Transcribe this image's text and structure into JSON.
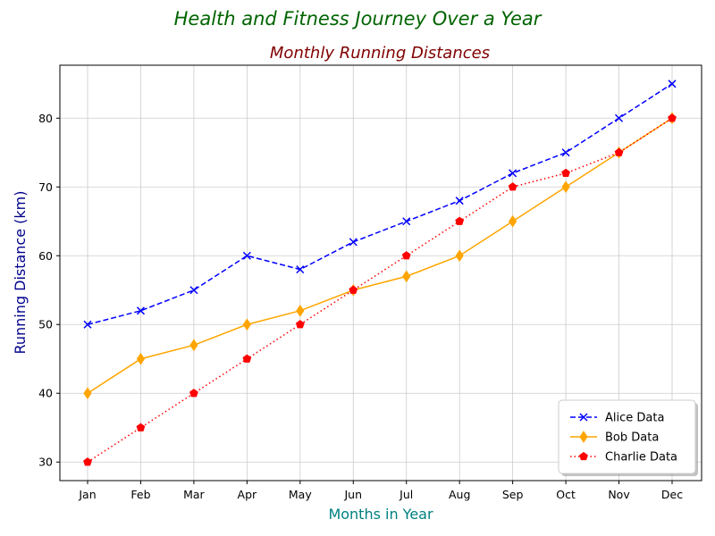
{
  "chart_data": {
    "type": "line",
    "suptitle": "Health and Fitness Journey Over a Year",
    "title": "Monthly Running Distances",
    "xlabel": "Months in Year",
    "ylabel": "Running Distance (km)",
    "categories": [
      "Jan",
      "Feb",
      "Mar",
      "Apr",
      "May",
      "Jun",
      "Jul",
      "Aug",
      "Sep",
      "Oct",
      "Nov",
      "Dec"
    ],
    "ylim": [
      27.3,
      87.7
    ],
    "yticks": [
      30,
      40,
      50,
      60,
      70,
      80
    ],
    "grid": true,
    "legend_position": "lower-right",
    "colors": {
      "suptitle": "#006400",
      "title": "#800000",
      "xlabel": "#008080",
      "ylabel": "#00008B",
      "grid": "#cccccc"
    },
    "series": [
      {
        "name": "Alice Data",
        "color": "#0000ff",
        "linestyle": "dashed",
        "marker": "x",
        "values": [
          50,
          52,
          55,
          60,
          58,
          62,
          65,
          68,
          72,
          75,
          80,
          85
        ]
      },
      {
        "name": "Bob Data",
        "color": "#ffa500",
        "linestyle": "solid",
        "marker": "diamond",
        "values": [
          40,
          45,
          47,
          50,
          52,
          55,
          57,
          60,
          65,
          70,
          75,
          80
        ]
      },
      {
        "name": "Charlie Data",
        "color": "#ff0000",
        "linestyle": "dotted",
        "marker": "pentagon",
        "values": [
          30,
          35,
          40,
          45,
          50,
          55,
          60,
          65,
          70,
          72,
          75,
          80
        ]
      }
    ]
  }
}
